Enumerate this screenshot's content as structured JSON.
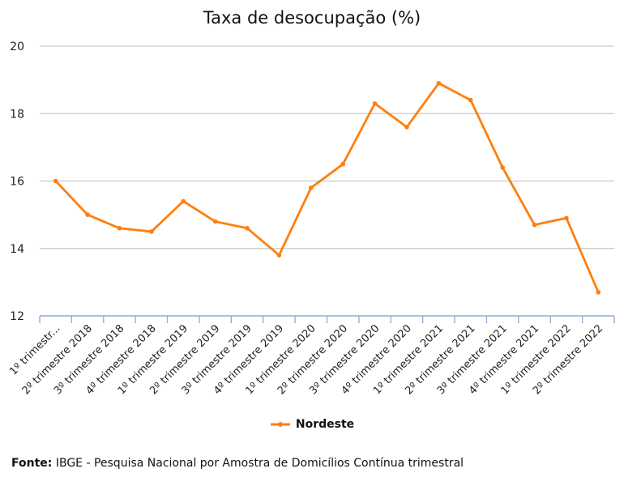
{
  "chart_data": {
    "type": "line",
    "title": "Taxa de desocupação (%)",
    "xlabel": "",
    "ylabel": "",
    "ylim": [
      12,
      20
    ],
    "yticks": [
      12,
      14,
      16,
      18,
      20
    ],
    "grid": true,
    "legend_position": "bottom",
    "categories": [
      "1º trimestr...",
      "2º trimestre 2018",
      "3º trimestre 2018",
      "4º trimestre 2018",
      "1º trimestre 2019",
      "2º trimestre 2019",
      "3º trimestre 2019",
      "4º trimestre 2019",
      "1º trimestre 2020",
      "2º trimestre 2020",
      "3º trimestre 2020",
      "4º trimestre 2020",
      "1º trimestre 2021",
      "2º trimestre 2021",
      "3º trimestre 2021",
      "4º trimestre 2021",
      "1º trimestre 2022",
      "2º trimestre 2022"
    ],
    "series": [
      {
        "name": "Nordeste",
        "color": "#ff7f0e",
        "values": [
          16.0,
          15.0,
          14.6,
          14.5,
          15.4,
          14.8,
          14.6,
          13.8,
          15.8,
          16.5,
          18.3,
          17.6,
          18.9,
          18.4,
          16.4,
          14.7,
          14.9,
          12.7
        ]
      }
    ]
  },
  "source": {
    "label": "Fonte:",
    "text": " IBGE - Pesquisa Nacional por Amostra de Domicílios Contínua trimestral"
  }
}
